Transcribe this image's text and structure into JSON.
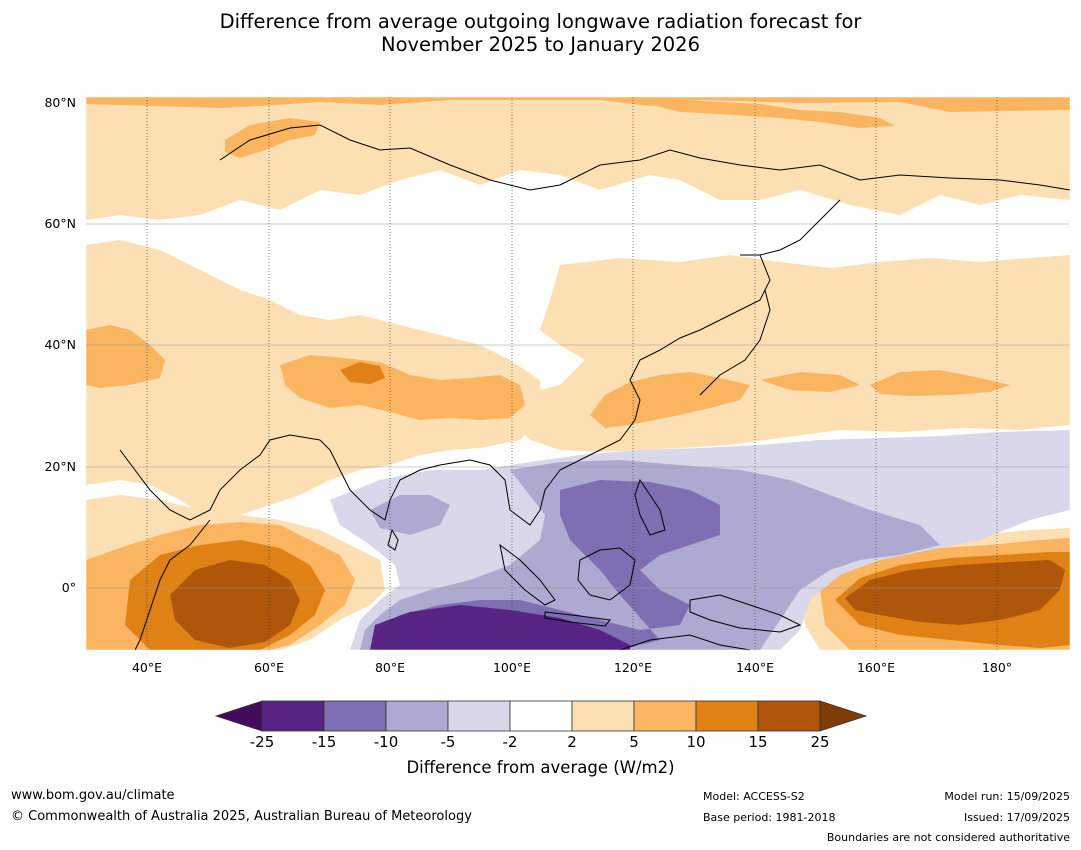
{
  "title_line1": "Difference from average outgoing longwave radiation forecast for",
  "title_line2": "November 2025 to January 2026",
  "lat_labels": [
    "80°N",
    "60°N",
    "40°N",
    "20°N",
    "0°"
  ],
  "lon_labels": [
    "40°E",
    "60°E",
    "80°E",
    "100°E",
    "120°E",
    "140°E",
    "160°E",
    "180°"
  ],
  "colorbar": {
    "ticks": [
      "-25",
      "-15",
      "-10",
      "-5",
      "-2",
      "2",
      "5",
      "10",
      "15",
      "25"
    ],
    "label": "Difference from average (W/m2)",
    "colors": {
      "below_-25": "#3f0d5c",
      "-25_-15": "#572486",
      "-15_-10": "#7d6fb1",
      "-10_-5": "#aea9d1",
      "-5_-2": "#d8d8ea",
      "-2_2": "#ffffff",
      "2_5": "#fddfb4",
      "5_10": "#fbb45f",
      "10_15": "#e08116",
      "15_25": "#b0560a",
      "above_25": "#7f3b08"
    }
  },
  "footer": {
    "website": "www.bom.gov.au/climate",
    "copyright": "© Commonwealth of Australia 2025, Australian Bureau of Meteorology",
    "model": "Model: ACCESS-S2",
    "base_period": "Base period: 1981-2018",
    "model_run": "Model run: 15/09/2025",
    "issued": "Issued: 17/09/2025",
    "disclaimer": "Boundaries are not considered authoritative"
  }
}
